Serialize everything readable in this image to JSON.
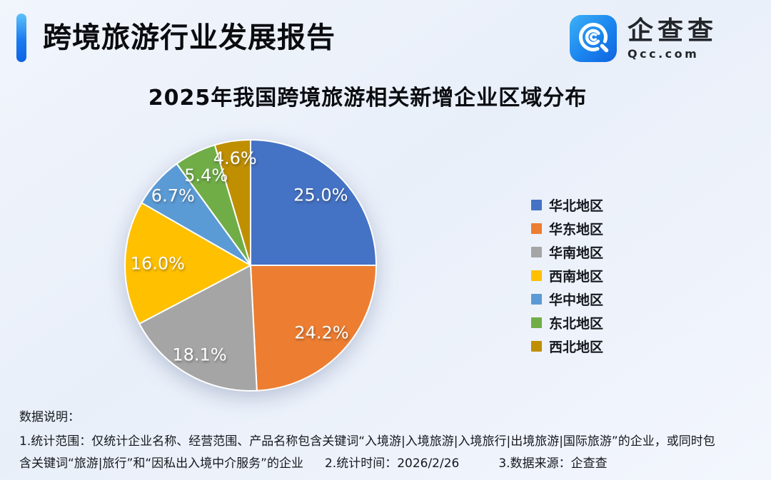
{
  "header": {
    "title": "跨境旅游行业发展报告"
  },
  "logo": {
    "name": "企查查",
    "domain": "Qcc.com",
    "icon": "qcc-magnifier-spiral",
    "icon_gradient": [
      "#3db1f6",
      "#0f63e0"
    ]
  },
  "chart_data": {
    "type": "pie",
    "title": "2025年我国跨境旅游相关新增企业区域分布",
    "unit": "%",
    "start_angle_deg": 0,
    "direction": "clockwise",
    "legend_position": "right",
    "slices": [
      {
        "label": "华北地区",
        "value": 25.0,
        "color": "#4472C4"
      },
      {
        "label": "华东地区",
        "value": 24.2,
        "color": "#ED7D31"
      },
      {
        "label": "华南地区",
        "value": 18.1,
        "color": "#A5A5A5"
      },
      {
        "label": "西南地区",
        "value": 16.0,
        "color": "#FFC000"
      },
      {
        "label": "华中地区",
        "value": 6.7,
        "color": "#5B9BD5"
      },
      {
        "label": "东北地区",
        "value": 5.4,
        "color": "#70AD47"
      },
      {
        "label": "西北地区",
        "value": 4.6,
        "color": "#BF8F00"
      }
    ],
    "data_labels": [
      "25.0%",
      "24.2%",
      "18.1%",
      "16.0%",
      "6.7%",
      "5.4%",
      "4.6%"
    ]
  },
  "footer": {
    "heading": "数据说明：",
    "line1": "1.统计范围：仅统计企业名称、经营范围、产品名称包含关键词“入境游|入境旅游|入境旅行|出境旅游|国际旅游”的企业，或同时包",
    "line2_part1": "含关键词“旅游|旅行”和“因私出入境中介服务”的企业",
    "line2_part2": "2.统计时间：2026/2/26",
    "line2_part3": "3.数据来源：企查查"
  }
}
